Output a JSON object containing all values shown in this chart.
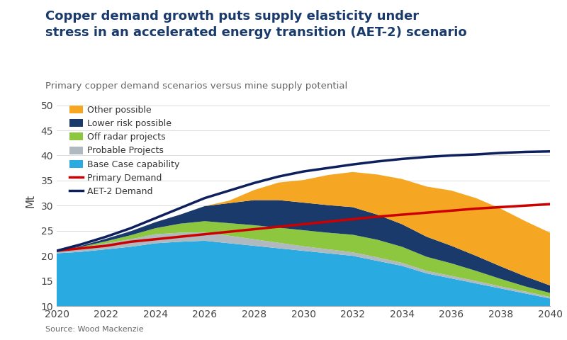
{
  "title": "Copper demand growth puts supply elasticity under\nstress in an accelerated energy transition (AET-2) scenario",
  "subtitle": "Primary copper demand scenarios versus mine supply potential",
  "source": "Source: Wood Mackenzie",
  "xlabel": "",
  "ylabel": "Mt",
  "xlim": [
    2020,
    2040
  ],
  "ylim": [
    10,
    52
  ],
  "yticks": [
    10,
    15,
    20,
    25,
    30,
    35,
    40,
    45,
    50
  ],
  "xticks": [
    2020,
    2022,
    2024,
    2026,
    2028,
    2030,
    2032,
    2034,
    2036,
    2038,
    2040
  ],
  "background_color": "#ffffff",
  "title_color": "#1a3a6b",
  "subtitle_color": "#666666",
  "years": [
    2020,
    2021,
    2022,
    2023,
    2024,
    2025,
    2026,
    2027,
    2028,
    2029,
    2030,
    2031,
    2032,
    2033,
    2034,
    2035,
    2036,
    2037,
    2038,
    2039,
    2040
  ],
  "base_case": [
    20.5,
    20.8,
    21.3,
    21.8,
    22.5,
    22.8,
    23.0,
    22.5,
    22.0,
    21.5,
    21.0,
    20.5,
    20.0,
    19.0,
    18.0,
    16.5,
    15.5,
    14.5,
    13.5,
    12.5,
    11.5
  ],
  "probable_projects": [
    0.5,
    0.8,
    1.2,
    1.5,
    1.8,
    1.8,
    1.7,
    1.5,
    1.3,
    1.1,
    0.9,
    0.8,
    0.7,
    0.7,
    0.6,
    0.5,
    0.5,
    0.5,
    0.4,
    0.4,
    0.3
  ],
  "off_radar": [
    0.0,
    0.2,
    0.4,
    0.8,
    1.2,
    1.8,
    2.2,
    2.5,
    2.8,
    3.0,
    3.2,
    3.3,
    3.5,
    3.5,
    3.2,
    2.8,
    2.5,
    2.0,
    1.5,
    1.0,
    0.8
  ],
  "lower_risk": [
    0.0,
    0.2,
    0.5,
    0.8,
    1.2,
    1.8,
    3.0,
    4.0,
    5.0,
    5.5,
    5.5,
    5.5,
    5.5,
    5.0,
    4.5,
    4.0,
    3.5,
    3.0,
    2.5,
    2.0,
    1.5
  ],
  "other_possible": [
    0.0,
    0.0,
    0.0,
    0.0,
    0.0,
    0.0,
    0.0,
    0.5,
    2.0,
    3.5,
    4.5,
    6.0,
    7.0,
    8.0,
    9.0,
    10.0,
    11.0,
    11.5,
    11.5,
    11.0,
    10.5
  ],
  "primary_demand": [
    21.0,
    21.5,
    22.0,
    22.8,
    23.3,
    23.8,
    24.3,
    24.8,
    25.3,
    25.8,
    26.3,
    26.8,
    27.3,
    27.8,
    28.2,
    28.6,
    29.0,
    29.4,
    29.7,
    30.0,
    30.3
  ],
  "aet2_demand": [
    21.0,
    22.3,
    23.8,
    25.5,
    27.5,
    29.5,
    31.5,
    33.0,
    34.5,
    35.8,
    36.8,
    37.5,
    38.2,
    38.8,
    39.3,
    39.7,
    40.0,
    40.2,
    40.5,
    40.7,
    40.8
  ],
  "colors": {
    "base_case": "#29abe2",
    "probable_projects": "#b0b8c0",
    "off_radar": "#8dc63f",
    "lower_risk": "#1a3a6b",
    "other_possible": "#f5a623",
    "primary_demand": "#cc0000",
    "aet2_demand": "#0d1f5c"
  },
  "legend_labels": [
    "Other possible",
    "Lower risk possible",
    "Off radar projects",
    "Probable Projects",
    "Base Case capability",
    "Primary Demand",
    "AET-2 Demand"
  ]
}
